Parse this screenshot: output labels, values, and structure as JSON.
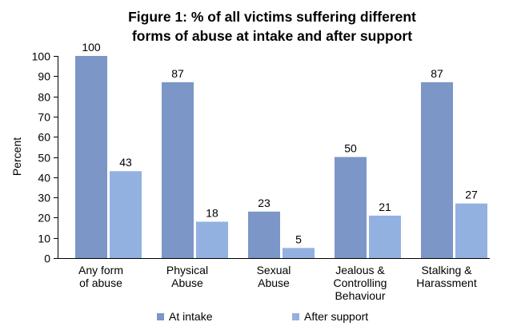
{
  "chart_data": {
    "type": "bar",
    "title": [
      "Figure 1: % of all victims suffering different",
      "forms of abuse at intake and after support"
    ],
    "ylabel": "Percent",
    "xlabel": "",
    "ylim": [
      0,
      100
    ],
    "yticks": [
      0,
      10,
      20,
      30,
      40,
      50,
      60,
      70,
      80,
      90,
      100
    ],
    "grid": false,
    "legend_position": "bottom",
    "categories": [
      [
        "Any form",
        "of abuse"
      ],
      [
        "Physical",
        "Abuse"
      ],
      [
        "Sexual",
        "Abuse"
      ],
      [
        "Jealous &",
        "Controlling",
        "Behaviour"
      ],
      [
        "Stalking  &",
        "Harassment"
      ]
    ],
    "series": [
      {
        "name": "At intake",
        "color": "#7b96c7",
        "values": [
          100,
          87,
          23,
          50,
          87
        ],
        "labels": [
          "100",
          "87",
          "23",
          "50",
          "87"
        ]
      },
      {
        "name": "After support",
        "color": "#93b1e0",
        "values": [
          43,
          18,
          5,
          21,
          27
        ],
        "labels": [
          "43",
          "18",
          "5",
          "21",
          "27"
        ]
      }
    ]
  }
}
